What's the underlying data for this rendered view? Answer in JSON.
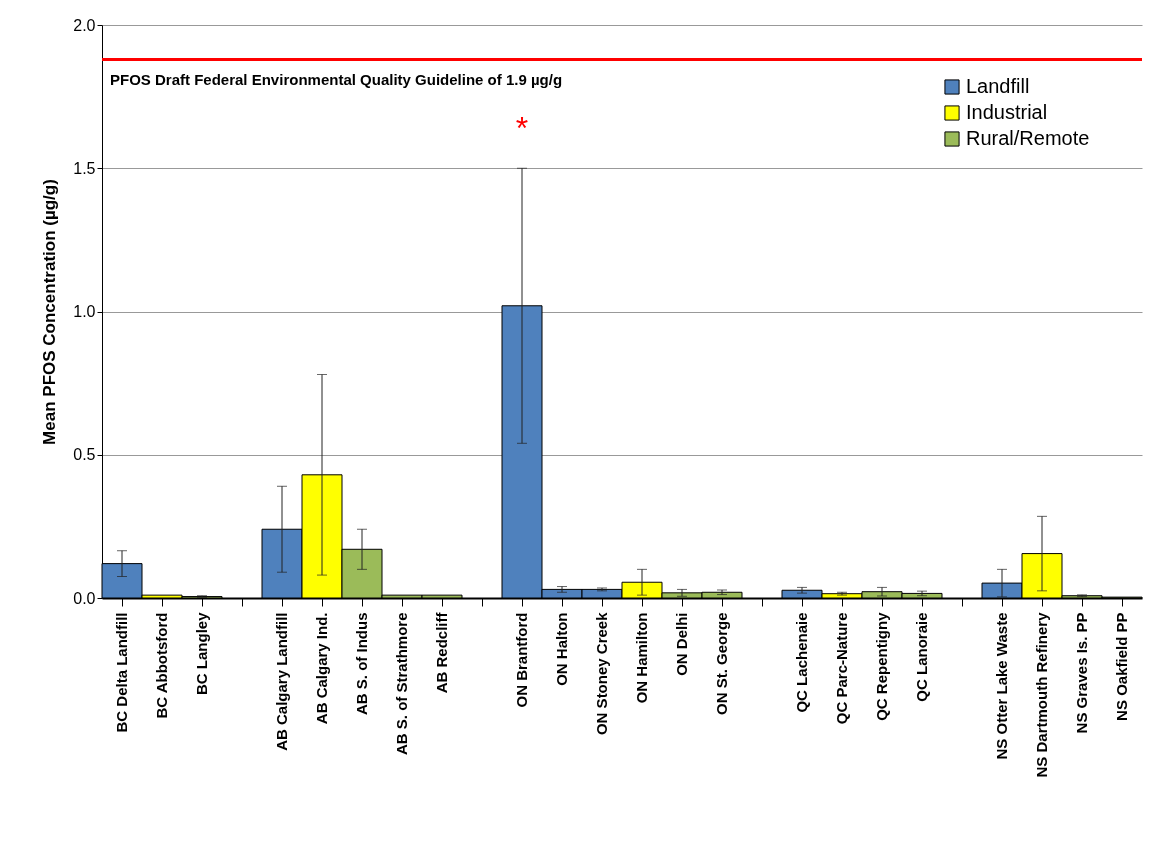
{
  "chart_data": {
    "type": "bar",
    "ylabel": "Mean PFOS Concentration (µg/g)",
    "categories": [
      "BC Delta Landfill",
      "BC Abbotsford",
      "BC Langley",
      null,
      "AB Calgary Landfill",
      "AB Calgary Ind.",
      "AB S. of Indus",
      "AB S. of Strathmore",
      "AB Redcliff",
      null,
      "ON Brantford",
      "ON Halton",
      "ON Stoney Creek",
      "ON Hamilton",
      "ON Delhi",
      "ON St. George",
      null,
      "QC Lachenaie",
      "QC Parc-Nature",
      "QC Repentigny",
      "QC Lanoraie",
      null,
      "NS Otter Lake Waste",
      "NS Dartmouth Refinery",
      "NS Graves Is. PP",
      "NS Oakfield PP"
    ],
    "series": [
      {
        "name": "Landfill",
        "color": "#4f81bd",
        "values": [
          0.12,
          null,
          null,
          null,
          0.24,
          null,
          null,
          null,
          null,
          null,
          1.02,
          0.03,
          0.03,
          null,
          null,
          null,
          null,
          0.027,
          null,
          null,
          null,
          null,
          0.052,
          null,
          null,
          null
        ],
        "errors": [
          0.045,
          null,
          null,
          null,
          0.15,
          null,
          null,
          null,
          null,
          null,
          0.48,
          0.01,
          0.005,
          null,
          null,
          null,
          null,
          0.01,
          null,
          null,
          null,
          null,
          0.048,
          null,
          null,
          null
        ]
      },
      {
        "name": "Industrial",
        "color": "#ffff00",
        "values": [
          null,
          0.01,
          null,
          null,
          null,
          0.43,
          null,
          null,
          null,
          null,
          null,
          null,
          null,
          0.055,
          null,
          null,
          null,
          null,
          0.015,
          null,
          null,
          null,
          null,
          0.155,
          null,
          null
        ],
        "errors": [
          null,
          null,
          null,
          null,
          null,
          0.35,
          null,
          null,
          null,
          null,
          null,
          null,
          null,
          0.045,
          null,
          null,
          null,
          null,
          0.005,
          null,
          null,
          null,
          null,
          0.13,
          null,
          null
        ]
      },
      {
        "name": "Rural/Remote",
        "color": "#9bbb59",
        "values": [
          null,
          null,
          0.005,
          null,
          null,
          null,
          0.17,
          0.01,
          0.01,
          null,
          null,
          null,
          null,
          null,
          0.018,
          0.02,
          null,
          null,
          null,
          0.022,
          0.016,
          null,
          null,
          null,
          0.008,
          0.003
        ],
        "errors": [
          null,
          null,
          0.003,
          null,
          null,
          null,
          0.07,
          null,
          null,
          null,
          null,
          null,
          null,
          null,
          0.012,
          0.008,
          null,
          null,
          null,
          0.015,
          0.008,
          null,
          null,
          null,
          0.003,
          null
        ]
      }
    ],
    "ylim": [
      0,
      2.0
    ],
    "yticks": [
      {
        "value": 0,
        "label": "0.0"
      },
      {
        "value": 0.5,
        "label": "0.5"
      },
      {
        "value": 1,
        "label": "1.0"
      },
      {
        "value": 1.5,
        "label": "1.5"
      },
      {
        "value": 2,
        "label": "2.0"
      }
    ],
    "grid": "y",
    "legend": "top right",
    "ref_lines": [
      {
        "axis": "y",
        "value": 1.88,
        "label": "PFOS Draft Federal Environmental  Quality Guideline of 1.9 µg/g",
        "color": "#ff0000"
      }
    ],
    "annotations": [
      "*"
    ]
  }
}
